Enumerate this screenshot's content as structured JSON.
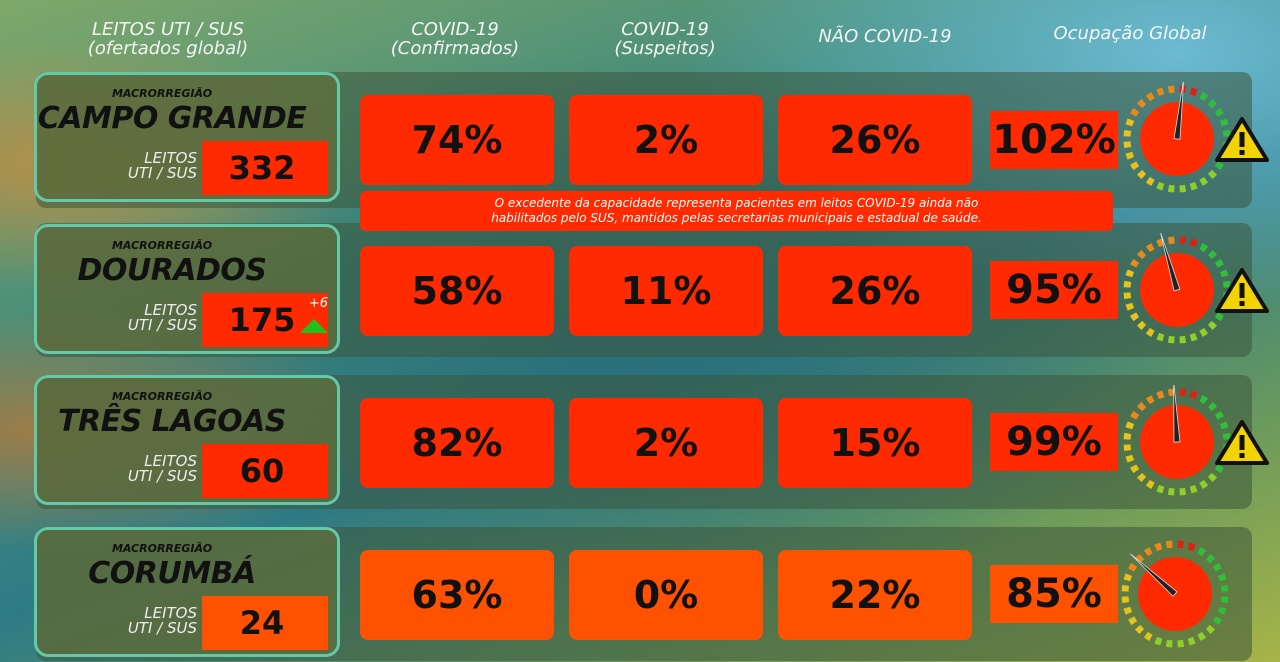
{
  "headers": {
    "leitos_line1": "LEITOS UTI / SUS",
    "leitos_line2": "(ofertados global)",
    "covid_conf_line1": "COVID-19",
    "covid_conf_line2": "(Confirmados)",
    "covid_susp_line1": "COVID-19",
    "covid_susp_line2": "(Suspeitos)",
    "nao_covid": "NÃO COVID-19",
    "ocupacao": "Ocupação Global"
  },
  "leitos_label_line1": "LEITOS",
  "leitos_label_line2": "UTI / SUS",
  "note": {
    "line1": "O excedente da capacidade representa pacientes em leitos COVID-19 ainda não",
    "line2": "habilitados pelo SUS, mantidos pelas secretarias municipais e estadual de saúde."
  },
  "regions": [
    {
      "macro": "MACRORREGIÃO",
      "name": "CAMPO GRANDE",
      "leitos": "332",
      "delta": "",
      "covid_confirmados": "74%",
      "covid_suspeitos": "2%",
      "nao_covid": "26%",
      "ocupacao": "102%",
      "ocupacao_value": 102,
      "warning": true
    },
    {
      "macro": "MACRORREGIÃO",
      "name": "DOURADOS",
      "leitos": "175",
      "delta": "+6",
      "covid_confirmados": "58%",
      "covid_suspeitos": "11%",
      "nao_covid": "26%",
      "ocupacao": "95%",
      "ocupacao_value": 95,
      "warning": true
    },
    {
      "macro": "MACRORREGIÃO",
      "name": "TRÊS LAGOAS",
      "leitos": "60",
      "delta": "",
      "covid_confirmados": "82%",
      "covid_suspeitos": "2%",
      "nao_covid": "15%",
      "ocupacao": "99%",
      "ocupacao_value": 99,
      "warning": true
    },
    {
      "macro": "MACRORREGIÃO",
      "name": "CORUMBÁ",
      "leitos": "24",
      "delta": "",
      "covid_confirmados": "63%",
      "covid_suspeitos": "0%",
      "nao_covid": "22%",
      "ocupacao": "85%",
      "ocupacao_value": 85,
      "warning": false
    }
  ],
  "colors": {
    "red": "#ff2a00",
    "orange": "#ff5200",
    "border": "#63c9a8",
    "warning": "#f2d400"
  }
}
